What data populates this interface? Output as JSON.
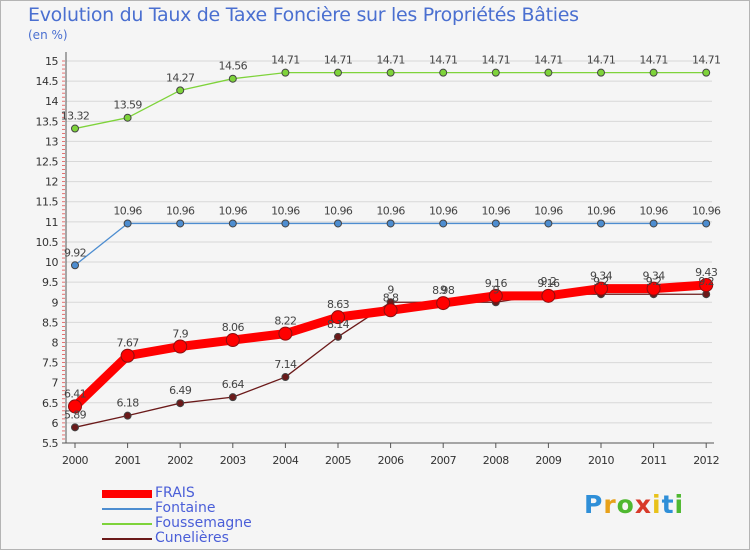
{
  "chart_data": {
    "type": "line",
    "title": "Evolution du Taux de Taxe Foncière sur les Propriétés Bâties",
    "unit_label": "(en %)",
    "categories": [
      "2000",
      "2001",
      "2002",
      "2003",
      "2004",
      "2005",
      "2006",
      "2007",
      "2008",
      "2009",
      "2010",
      "2011",
      "2012"
    ],
    "ylim": [
      5.5,
      15
    ],
    "yticks": [
      "5.5",
      "6",
      "6.5",
      "7",
      "7.5",
      "8",
      "8.5",
      "9",
      "9.5",
      "10",
      "10.5",
      "11",
      "11.5",
      "12",
      "12.5",
      "13",
      "13.5",
      "14",
      "14.5",
      "15"
    ],
    "series": [
      {
        "name": "FRAIS",
        "color": "#ff0000",
        "values": [
          6.41,
          7.67,
          7.9,
          8.06,
          8.22,
          8.63,
          8.8,
          8.98,
          9.16,
          9.16,
          9.34,
          9.34,
          9.43
        ],
        "labels": [
          "6.41",
          "7.67",
          "7.9",
          "8.06",
          "8.22",
          "8.63",
          "8.8",
          "8.98",
          "9.16",
          "9.16",
          "9.34",
          "9.34",
          "9.43"
        ]
      },
      {
        "name": "Fontaine",
        "color": "#4d8dd0",
        "values": [
          9.92,
          10.96,
          10.96,
          10.96,
          10.96,
          10.96,
          10.96,
          10.96,
          10.96,
          10.96,
          10.96,
          10.96,
          10.96
        ],
        "labels": [
          "9.92",
          "10.96",
          "10.96",
          "10.96",
          "10.96",
          "10.96",
          "10.96",
          "10.96",
          "10.96",
          "10.96",
          "10.96",
          "10.96",
          "10.96"
        ]
      },
      {
        "name": "Foussemagne",
        "color": "#7ed33a",
        "values": [
          13.32,
          13.59,
          14.27,
          14.56,
          14.71,
          14.71,
          14.71,
          14.71,
          14.71,
          14.71,
          14.71,
          14.71,
          14.71
        ],
        "labels": [
          "13.32",
          "13.59",
          "14.27",
          "14.56",
          "14.71",
          "14.71",
          "14.71",
          "14.71",
          "14.71",
          "14.71",
          "14.71",
          "14.71",
          "14.71"
        ]
      },
      {
        "name": "Cunelières",
        "color": "#6b1a1a",
        "values": [
          5.89,
          6.18,
          6.49,
          6.64,
          7.14,
          8.14,
          9,
          9,
          9,
          9.2,
          9.2,
          9.2,
          9.2
        ],
        "labels": [
          "5.89",
          "6.18",
          "6.49",
          "6.64",
          "7.14",
          "8.14",
          "9",
          "9",
          "9",
          "9.2",
          "9.2",
          "9.2",
          "9.2"
        ]
      }
    ]
  },
  "legend": {
    "items": [
      {
        "label": "FRAIS",
        "color": "#ff0000"
      },
      {
        "label": "Fontaine",
        "color": "#4d8dd0"
      },
      {
        "label": "Foussemagne",
        "color": "#7ed33a"
      },
      {
        "label": "Cunelières",
        "color": "#6b1a1a"
      }
    ]
  },
  "brand": {
    "letters": [
      "P",
      "r",
      "o",
      "x",
      "i",
      "t",
      "i"
    ],
    "colors": [
      "#2f8fd8",
      "#e8a11a",
      "#4fb830",
      "#d83a2a",
      "#e8c21a",
      "#2f8fd8",
      "#4fb830"
    ]
  }
}
